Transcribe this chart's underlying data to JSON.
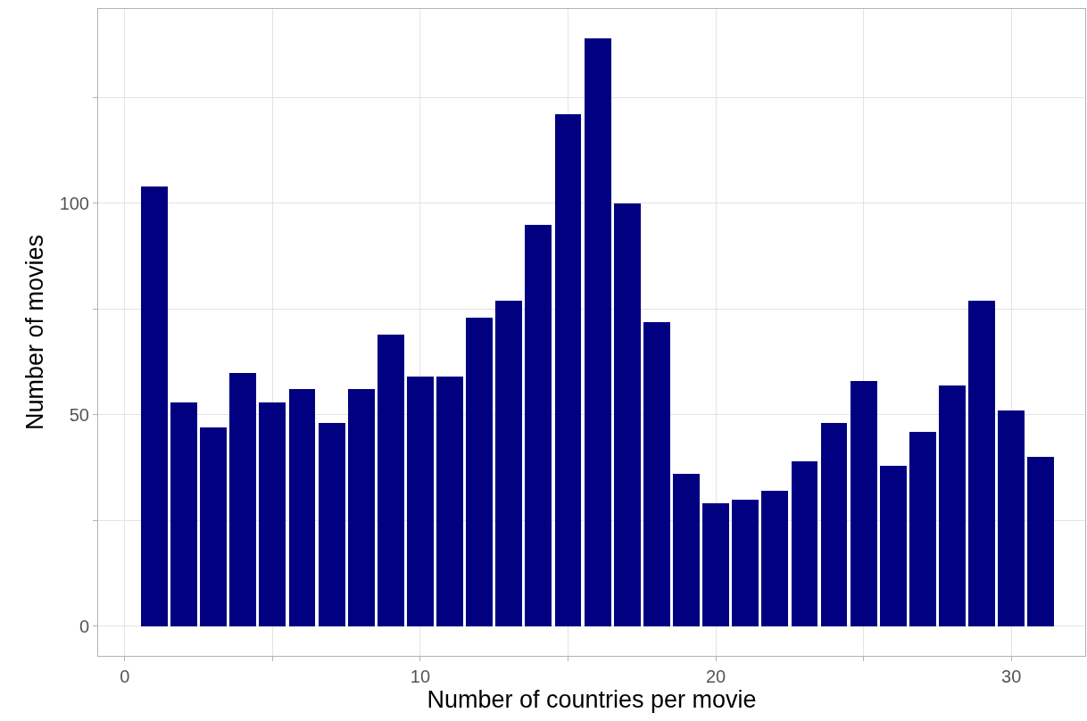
{
  "chart_data": {
    "type": "bar",
    "xlabel": "Number of countries per movie",
    "ylabel": "Number of movies",
    "x": [
      1,
      2,
      3,
      4,
      5,
      6,
      7,
      8,
      9,
      10,
      11,
      12,
      13,
      14,
      15,
      16,
      17,
      18,
      19,
      20,
      21,
      22,
      23,
      24,
      25,
      26,
      27,
      28,
      29,
      30,
      31
    ],
    "values": [
      104,
      53,
      47,
      60,
      53,
      56,
      48,
      56,
      69,
      59,
      59,
      73,
      77,
      95,
      121,
      139,
      100,
      72,
      36,
      29,
      30,
      32,
      39,
      48,
      58,
      38,
      46,
      57,
      77,
      51,
      40
    ],
    "color": "#000080",
    "xlim": [
      -0.9,
      32.5
    ],
    "xticks": [
      0,
      {
        "value": 5,
        "label": null
      },
      10,
      {
        "value": 15,
        "label": null
      },
      20,
      {
        "value": 25,
        "label": null
      },
      30
    ],
    "ylim": [
      -7,
      146
    ],
    "yticks": [
      0,
      {
        "value": 25,
        "label": null
      },
      50,
      {
        "value": 75,
        "label": null
      },
      100,
      {
        "value": 125,
        "label": null
      }
    ],
    "grid": true
  }
}
